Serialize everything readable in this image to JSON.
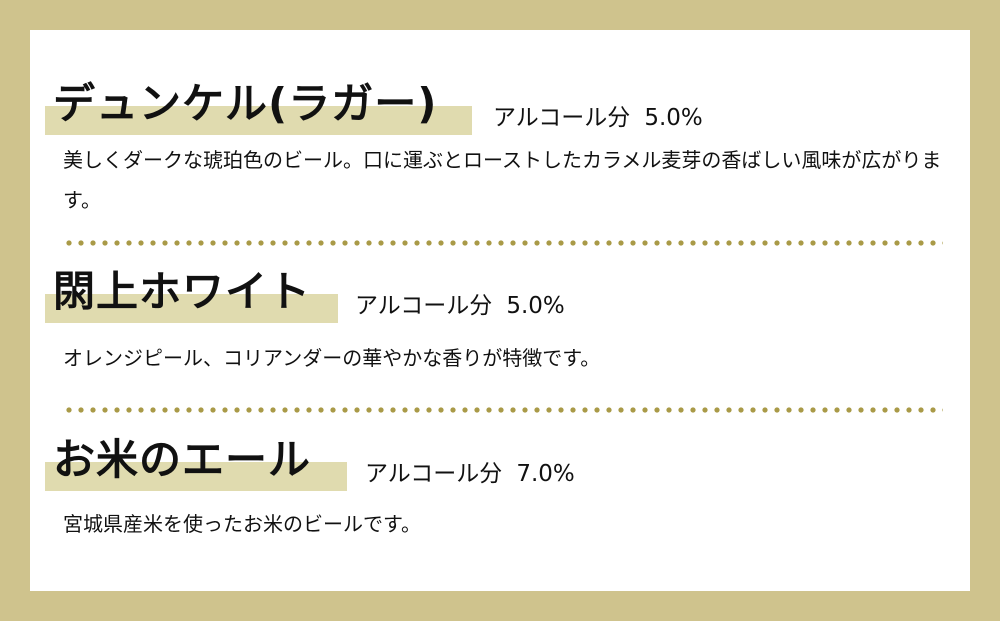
{
  "colors": {
    "background": "#cfc38d",
    "highlight": "#e0dbaf",
    "dots": "#a99a47"
  },
  "beers": [
    {
      "name": "デュンケル(ラガー)",
      "alcohol_label": "アルコール分",
      "alcohol_value": "5.0%",
      "description": "美しくダークな琥珀色のビール。口に運ぶとローストしたカラメル麦芽の香ばしい風味が広がります。"
    },
    {
      "name": "閖上ホワイト",
      "alcohol_label": "アルコール分",
      "alcohol_value": "5.0%",
      "description": "オレンジピール、コリアンダーの華やかな香りが特徴です。"
    },
    {
      "name": "お米のエール",
      "alcohol_label": "アルコール分",
      "alcohol_value": "7.0%",
      "description": "宮城県産米を使ったお米のビールです。"
    }
  ]
}
